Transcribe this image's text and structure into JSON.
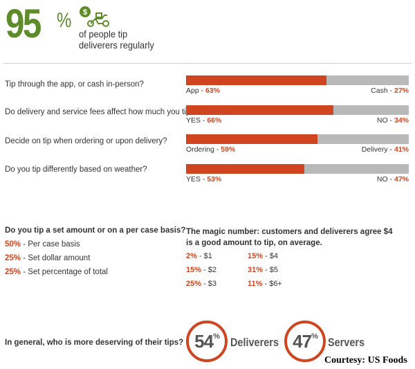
{
  "header": {
    "big_number": "95",
    "percent_sign": "%",
    "line1": "of people tip",
    "line2": "deliverers regularly",
    "icon": "delivery-scooter-dollar-icon"
  },
  "chart_data": [
    {
      "type": "bar",
      "title": "",
      "series": [
        {
          "question": "Tip through the app, or cash in-person?",
          "left_label": "App - ",
          "left_value": 63,
          "right_label": "Cash - ",
          "right_value": 27
        },
        {
          "question": "Do delivery and service fees affect how much you tip?",
          "left_label": "YES - ",
          "left_value": 66,
          "right_label": "NO - ",
          "right_value": 34
        },
        {
          "question": "Decide on tip when ordering or upon delivery?",
          "left_label": "Ordering - ",
          "left_value": 59,
          "right_label": "Delivery - ",
          "right_value": 41
        },
        {
          "question": "Do you tip differently based on weather?",
          "left_label": "YES - ",
          "left_value": 53,
          "right_label": "NO - ",
          "right_value": 47
        }
      ],
      "unit": "%",
      "ylim": [
        0,
        100
      ]
    },
    {
      "type": "table",
      "title": "Do you tip a set amount or on a per case basis?",
      "rows": [
        {
          "pct": "50%",
          "label": " - Per case basis"
        },
        {
          "pct": "25%",
          "label": " - Set dollar amount"
        },
        {
          "pct": "25%",
          "label": " - Set percentage of total"
        }
      ]
    },
    {
      "type": "table",
      "title": "The magic number: customers and deliverers agree $4 is a good amount to tip, on average.",
      "rows": [
        {
          "pct": "2%",
          "amount": " - $1"
        },
        {
          "pct": "15%",
          "amount": " - $2"
        },
        {
          "pct": "25%",
          "amount": " - $3"
        },
        {
          "pct": "15%",
          "amount": " - $4"
        },
        {
          "pct": "31%",
          "amount": " - $5"
        },
        {
          "pct": "11%",
          "amount": " - $6+"
        }
      ]
    },
    {
      "type": "pie",
      "title": "In general, who is more deserving of their tips?",
      "categories": [
        "Deliverers",
        "Servers"
      ],
      "values": [
        54,
        47
      ],
      "display": [
        "54",
        "47"
      ]
    }
  ],
  "credit": "Courtesy: US Foods",
  "colors": {
    "accent": "#cf4520",
    "green": "#5e8c2a",
    "bar_rest": "#b9b9b9"
  }
}
